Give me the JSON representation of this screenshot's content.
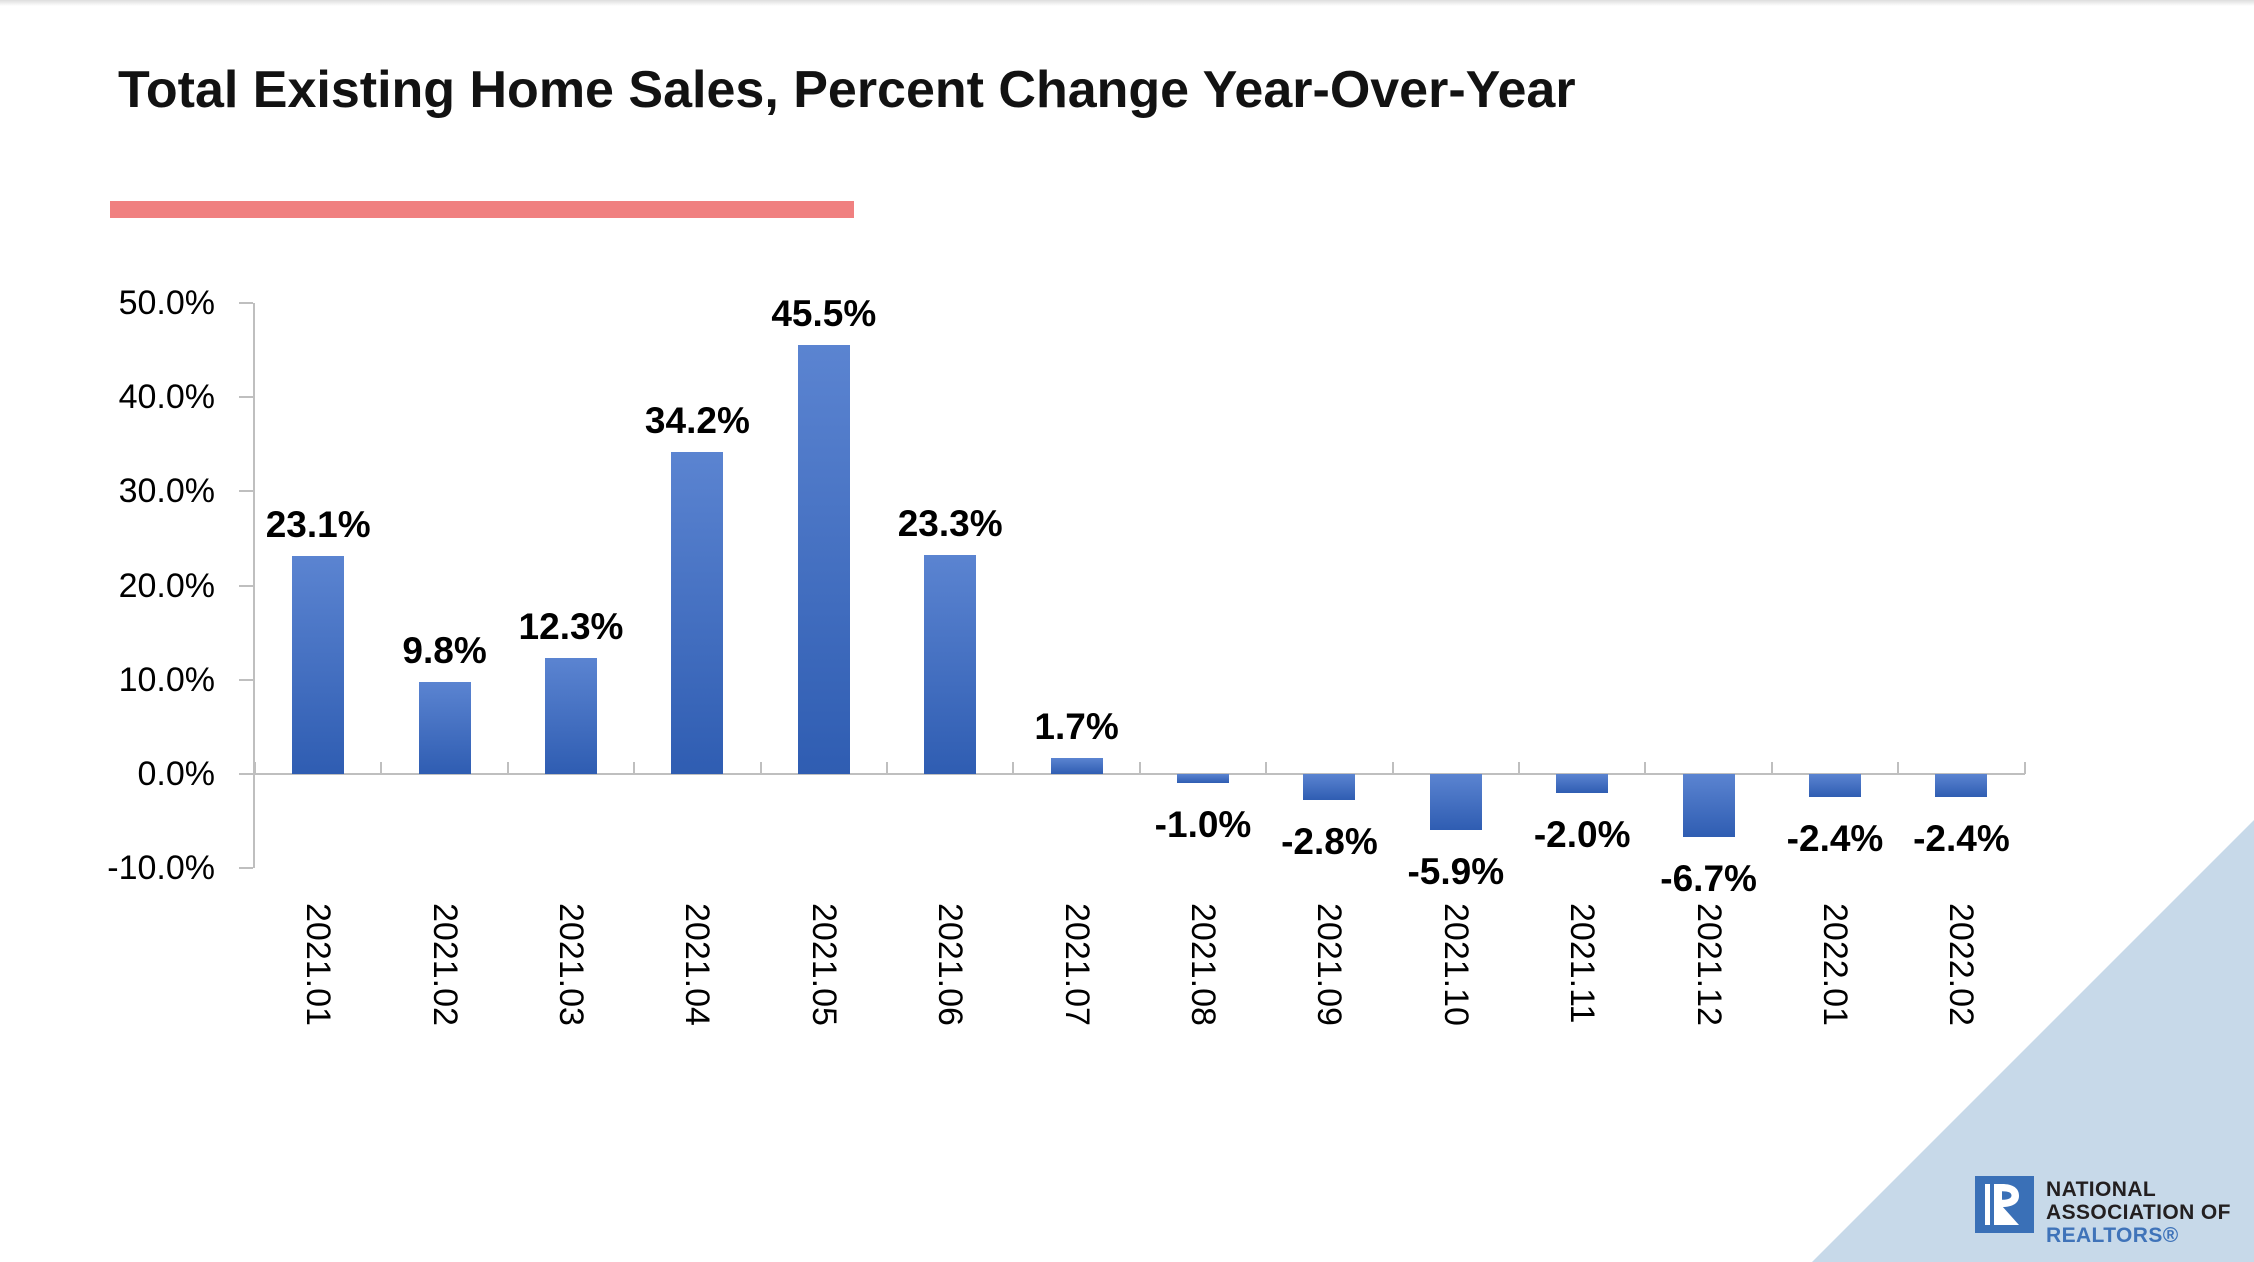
{
  "title": "Total Existing Home Sales, Percent Change Year-Over-Year",
  "accent": {
    "underline_color": "#f08080",
    "axis_color": "#bfbfbf",
    "bar_gradient_top": "#5b84d1",
    "bar_gradient_bottom": "#2f5db2"
  },
  "chart_data": {
    "type": "bar",
    "title": "Total Existing Home Sales, Percent Change Year-Over-Year",
    "categories": [
      "2021.01",
      "2021.02",
      "2021.03",
      "2021.04",
      "2021.05",
      "2021.06",
      "2021.07",
      "2021.08",
      "2021.09",
      "2021.10",
      "2021.11",
      "2021.12",
      "2022.01",
      "2022.02"
    ],
    "values": [
      23.1,
      9.8,
      12.3,
      34.2,
      45.5,
      23.3,
      1.7,
      -1.0,
      -2.8,
      -5.9,
      -2.0,
      -6.7,
      -2.4,
      -2.4
    ],
    "value_labels": [
      "23.1%",
      "9.8%",
      "12.3%",
      "34.2%",
      "45.5%",
      "23.3%",
      "1.7%",
      "-1.0%",
      "-2.8%",
      "-5.9%",
      "-2.0%",
      "-6.7%",
      "-2.4%",
      "-2.4%"
    ],
    "xlabel": "",
    "ylabel": "",
    "ylim": [
      -10,
      50
    ],
    "ytick_step": 10,
    "ytick_labels": [
      "50.0%",
      "40.0%",
      "30.0%",
      "20.0%",
      "10.0%",
      "0.0%",
      "-10.0%"
    ],
    "grid": false,
    "legend": "none",
    "bar_color": "#4472c4"
  },
  "logo": {
    "line1": "NATIONAL",
    "line2": "ASSOCIATION OF",
    "line3": "REALTORS®",
    "square_color": "#3a70b7",
    "text_color": "#231f20",
    "realtors_color": "#3f73b9",
    "triangle_color": "#c7d9e9"
  }
}
